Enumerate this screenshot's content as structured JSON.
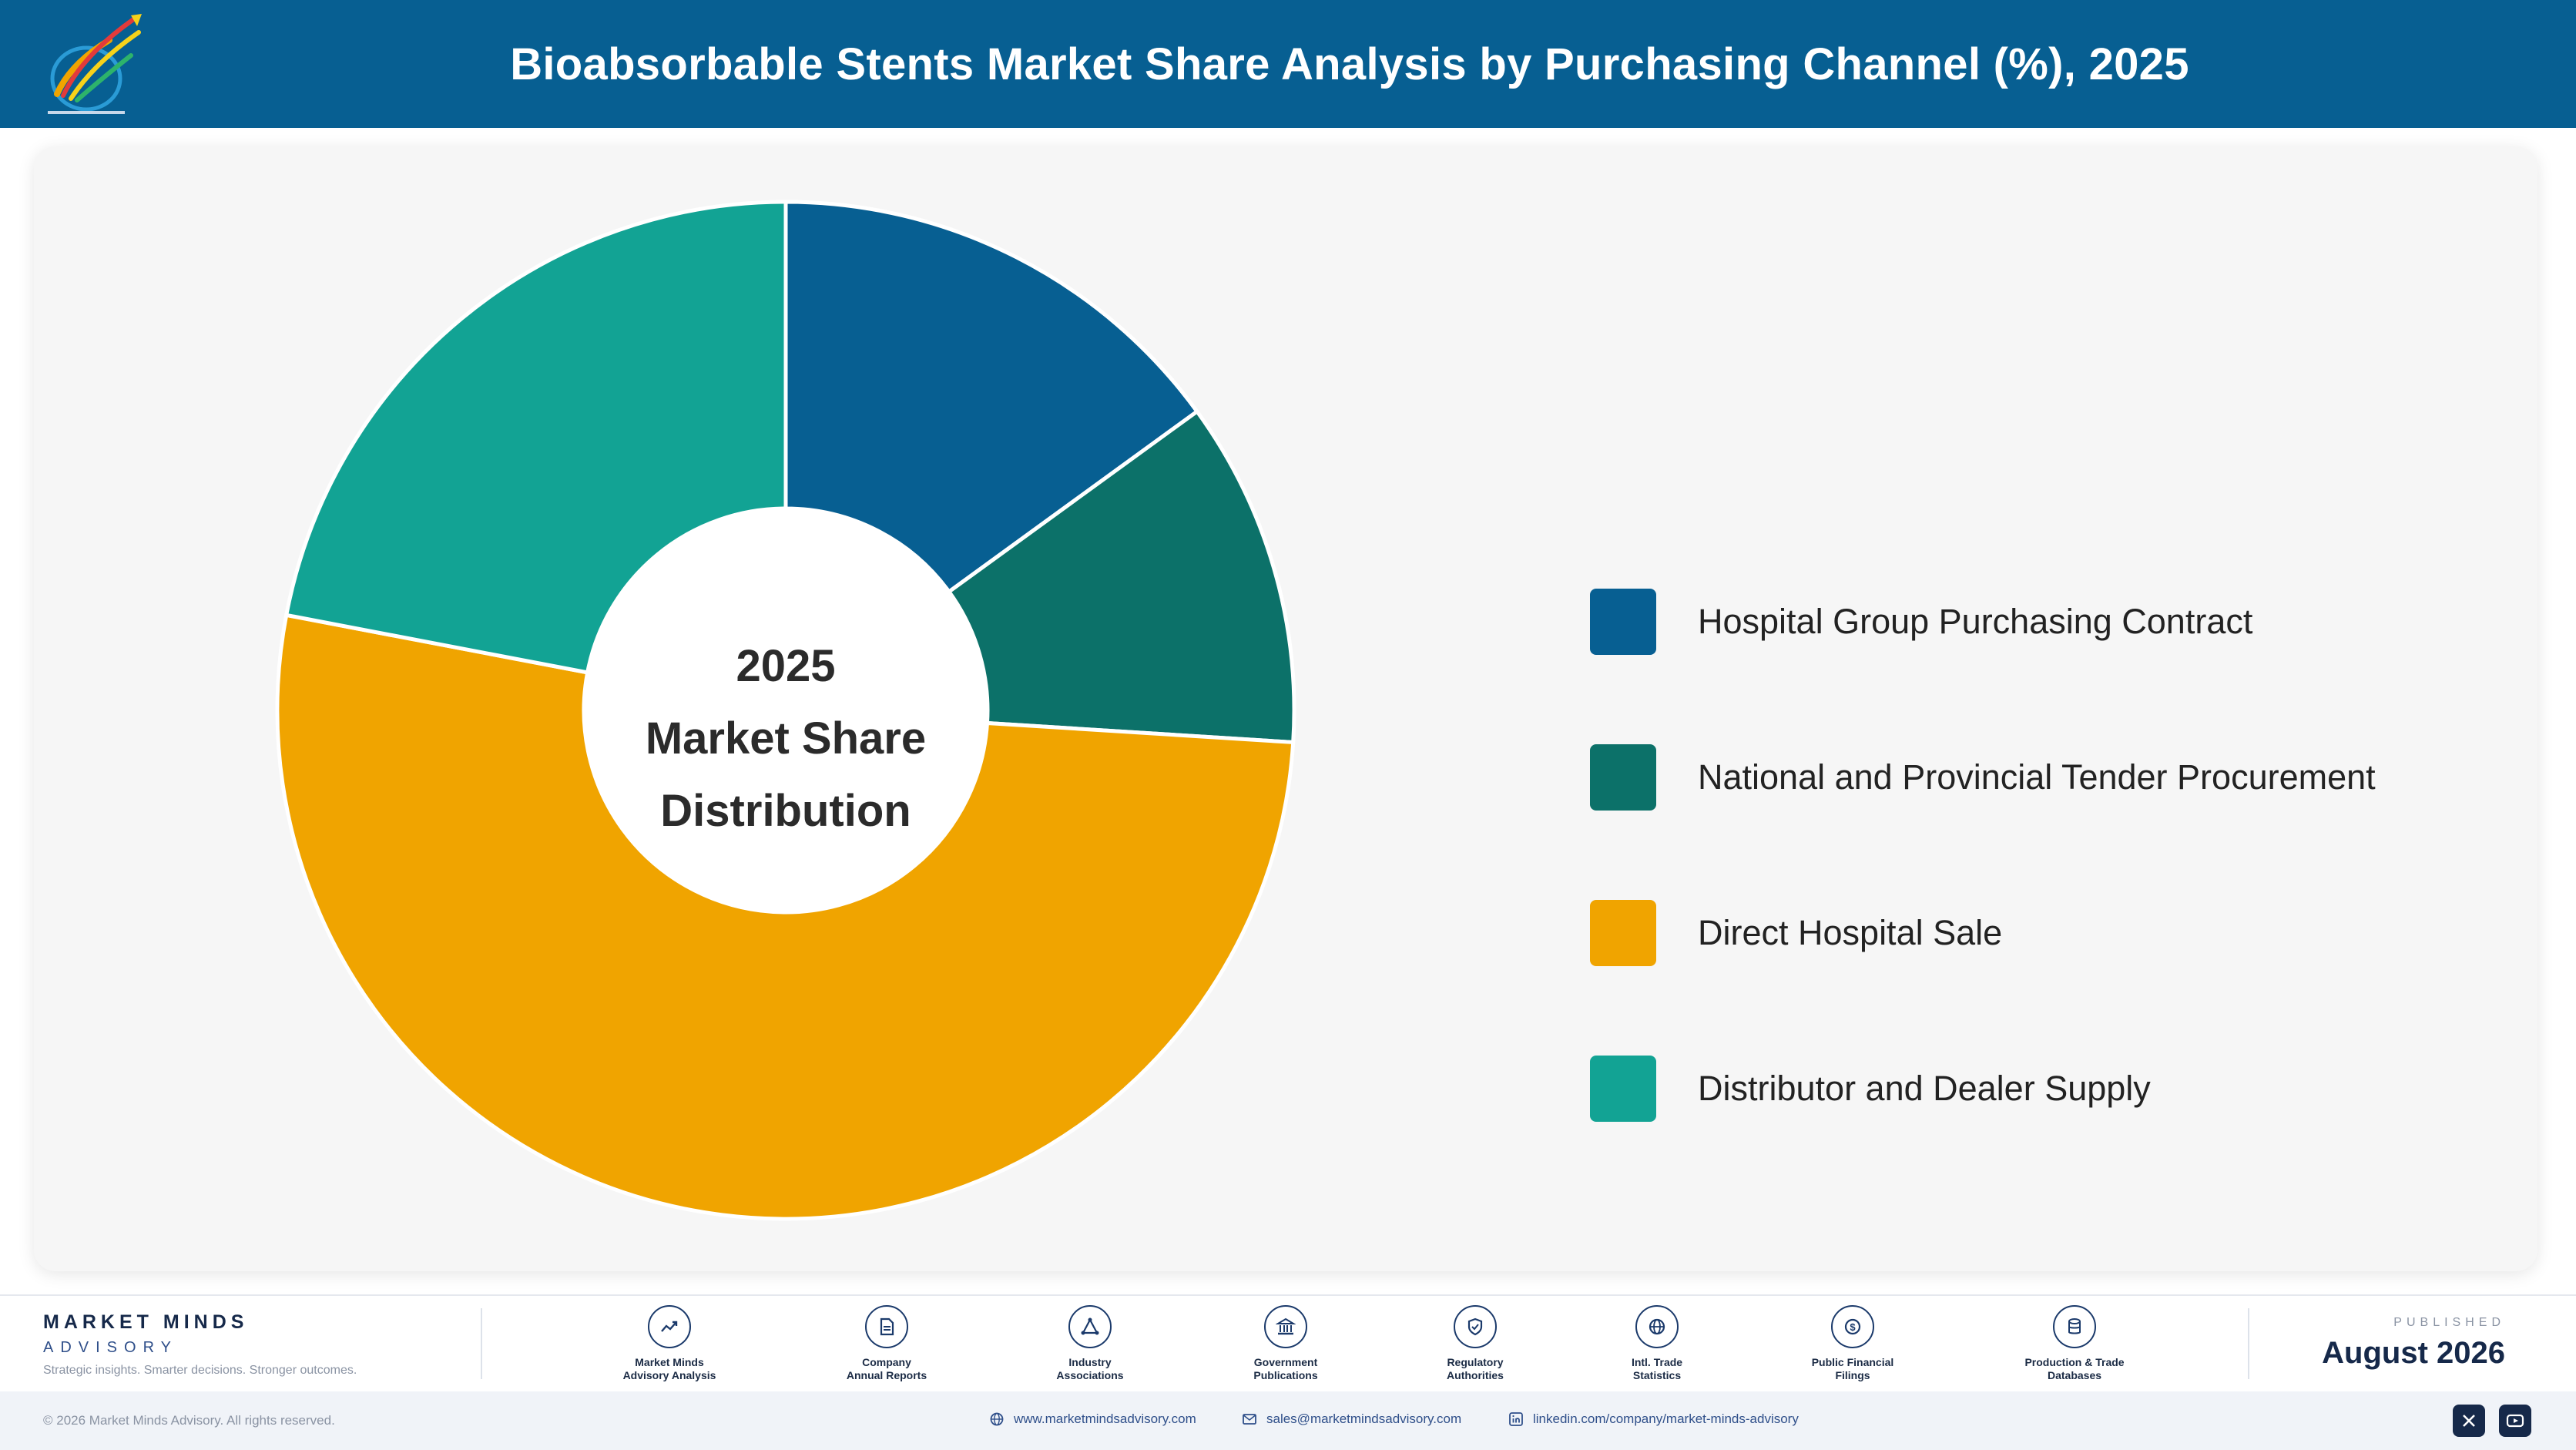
{
  "header": {
    "title": "Bioabsorbable Stents Market Share Analysis by Purchasing Channel (%), 2025",
    "logo_icon": "rocket-logo-icon"
  },
  "chart_data": {
    "type": "pie",
    "donut": true,
    "title": "Bioabsorbable Stents Market Share Analysis by Purchasing Channel (%), 2025",
    "center_label": [
      "2025",
      "Market Share",
      "Distribution"
    ],
    "legend_position": "right",
    "slices": [
      {
        "label": "Hospital Group Purchasing Contract",
        "value": 15,
        "color": "#075f92"
      },
      {
        "label": "National and Provincial Tender Procurement",
        "value": 11,
        "color": "#0c7169"
      },
      {
        "label": "Direct Hospital Sale",
        "value": 52,
        "color": "#f0a400"
      },
      {
        "label": "Distributor and Dealer Supply",
        "value": 22,
        "color": "#12a394"
      }
    ]
  },
  "footer": {
    "brand_name": "MARKET MINDS",
    "brand_sub": "ADVISORY",
    "tagline": "Strategic insights. Smarter decisions. Stronger outcomes.",
    "sources": [
      {
        "line1": "Market Minds",
        "line2": "Advisory Analysis",
        "icon": "trend-icon"
      },
      {
        "line1": "Company",
        "line2": "Annual Reports",
        "icon": "document-icon"
      },
      {
        "line1": "Industry",
        "line2": "Associations",
        "icon": "network-icon"
      },
      {
        "line1": "Government",
        "line2": "Publications",
        "icon": "bank-icon"
      },
      {
        "line1": "Regulatory",
        "line2": "Authorities",
        "icon": "shield-icon"
      },
      {
        "line1": "Intl. Trade",
        "line2": "Statistics",
        "icon": "globe-icon"
      },
      {
        "line1": "Public Financial",
        "line2": "Filings",
        "icon": "dollar-icon"
      },
      {
        "line1": "Production & Trade",
        "line2": "Databases",
        "icon": "database-icon"
      }
    ],
    "published_label": "PUBLISHED",
    "published_date": "August 2026"
  },
  "bottom": {
    "copyright": "© 2026 Market Minds Advisory. All rights reserved.",
    "website": "www.marketmindsadvisory.com",
    "email": "sales@marketmindsadvisory.com",
    "linkedin": "linkedin.com/company/market-minds-advisory",
    "social": [
      "x-icon",
      "youtube-icon"
    ]
  }
}
